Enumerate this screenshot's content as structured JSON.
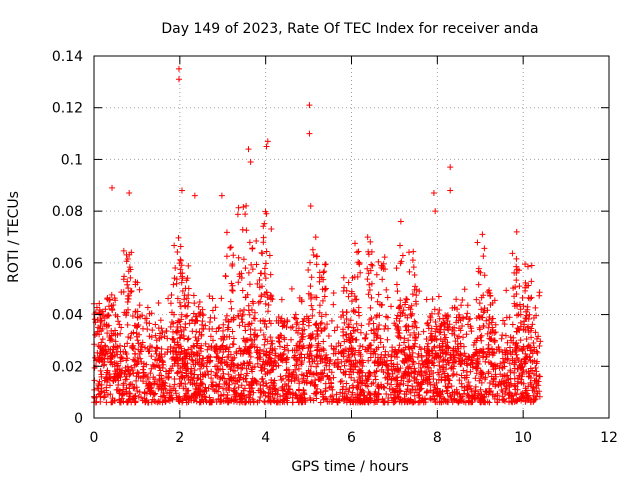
{
  "chart_data": {
    "type": "scatter",
    "title": "Day 149 of 2023, Rate Of TEC Index for receiver anda",
    "xlabel": "GPS time / hours",
    "ylabel": "ROTI / TECUs",
    "xlim": [
      0,
      12
    ],
    "ylim": [
      0,
      0.14
    ],
    "xticks": [
      "0",
      "2",
      "4",
      "6",
      "8",
      "10",
      "12"
    ],
    "yticks": [
      "0",
      "0.02",
      "0.04",
      "0.06",
      "0.08",
      "0.1",
      "0.12",
      "0.14"
    ],
    "grid": true,
    "marker": "plus",
    "series": [
      {
        "name": "ROTI",
        "color": "#ff0000",
        "x_range": [
          0,
          10.4
        ],
        "peaks": [
          {
            "x": 1.98,
            "y": 0.135
          },
          {
            "x": 1.98,
            "y": 0.131
          },
          {
            "x": 5.02,
            "y": 0.121
          },
          {
            "x": 5.02,
            "y": 0.11
          },
          {
            "x": 4.05,
            "y": 0.107
          },
          {
            "x": 4.02,
            "y": 0.105
          },
          {
            "x": 3.6,
            "y": 0.104
          },
          {
            "x": 3.65,
            "y": 0.099
          },
          {
            "x": 8.3,
            "y": 0.097
          },
          {
            "x": 8.3,
            "y": 0.088
          },
          {
            "x": 0.42,
            "y": 0.089
          },
          {
            "x": 2.05,
            "y": 0.088
          },
          {
            "x": 0.82,
            "y": 0.087
          },
          {
            "x": 7.92,
            "y": 0.087
          },
          {
            "x": 2.35,
            "y": 0.086
          },
          {
            "x": 2.98,
            "y": 0.086
          },
          {
            "x": 5.05,
            "y": 0.082
          },
          {
            "x": 7.95,
            "y": 0.08
          },
          {
            "x": 9.05,
            "y": 0.071
          },
          {
            "x": 9.85,
            "y": 0.072
          },
          {
            "x": 7.15,
            "y": 0.076
          },
          {
            "x": 10.2,
            "y": 0.059
          }
        ]
      }
    ]
  }
}
